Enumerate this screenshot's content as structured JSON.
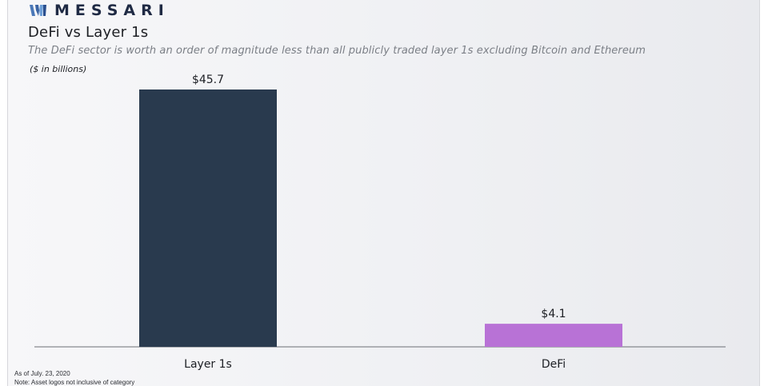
{
  "brand": {
    "name": "MESSARI"
  },
  "header": {
    "title": "DeFi vs Layer 1s",
    "subtitle": "The DeFi sector is worth an order of magnitude less than all publicly traded layer 1s excluding Bitcoin and Ethereum",
    "unit_label": "($ in billions)"
  },
  "chart_data": {
    "type": "bar",
    "title": "DeFi vs Layer 1s",
    "categories": [
      "Layer 1s",
      "DeFi"
    ],
    "values": [
      45.7,
      4.1
    ],
    "value_labels": [
      "$45.7",
      "$4.1"
    ],
    "colors": [
      "#293a4e",
      "#b872d6"
    ],
    "ylim": [
      0,
      45.7
    ],
    "grid": false,
    "legend": "none",
    "xlabel": "",
    "ylabel": ""
  },
  "footnotes": {
    "date": "As of July. 23, 2020",
    "note": "Note: Asset logos not inclusive of category"
  }
}
